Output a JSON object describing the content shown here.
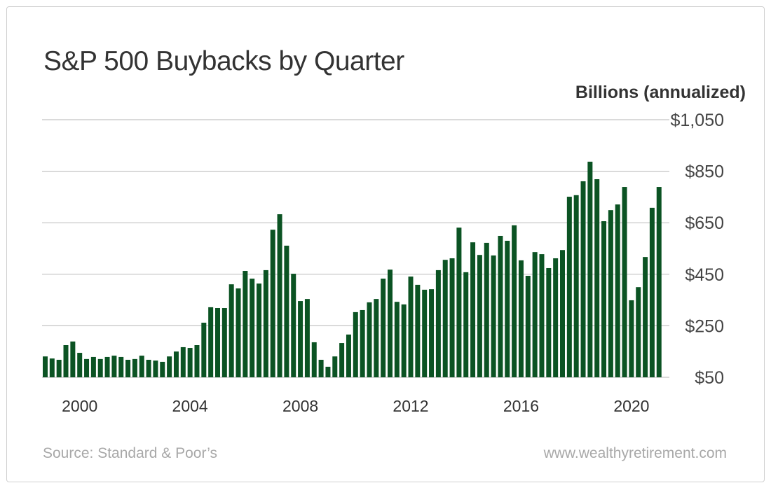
{
  "chart_data": {
    "type": "bar",
    "title": "S&P 500 Buybacks by Quarter",
    "ylabel": "Billions (annualized)",
    "ylim": [
      50,
      1050
    ],
    "yticks": [
      50,
      250,
      450,
      650,
      850,
      1050
    ],
    "ytick_labels": [
      "$50",
      "$250",
      "$450",
      "$650",
      "$850",
      "$1,050"
    ],
    "xtick_labels": [
      "2000",
      "2004",
      "2008",
      "2012",
      "2016",
      "2020"
    ],
    "grid": true,
    "color": "#0b5323",
    "categories": [
      "1999 Q1",
      "1999 Q2",
      "1999 Q3",
      "1999 Q4",
      "2000 Q1",
      "2000 Q2",
      "2000 Q3",
      "2000 Q4",
      "2001 Q1",
      "2001 Q2",
      "2001 Q3",
      "2001 Q4",
      "2002 Q1",
      "2002 Q2",
      "2002 Q3",
      "2002 Q4",
      "2003 Q1",
      "2003 Q2",
      "2003 Q3",
      "2003 Q4",
      "2004 Q1",
      "2004 Q2",
      "2004 Q3",
      "2004 Q4",
      "2005 Q1",
      "2005 Q2",
      "2005 Q3",
      "2005 Q4",
      "2006 Q1",
      "2006 Q2",
      "2006 Q3",
      "2006 Q4",
      "2007 Q1",
      "2007 Q2",
      "2007 Q3",
      "2007 Q4",
      "2008 Q1",
      "2008 Q2",
      "2008 Q3",
      "2008 Q4",
      "2009 Q1",
      "2009 Q2",
      "2009 Q3",
      "2009 Q4",
      "2010 Q1",
      "2010 Q2",
      "2010 Q3",
      "2010 Q4",
      "2011 Q1",
      "2011 Q2",
      "2011 Q3",
      "2011 Q4",
      "2012 Q1",
      "2012 Q2",
      "2012 Q3",
      "2012 Q4",
      "2013 Q1",
      "2013 Q2",
      "2013 Q3",
      "2013 Q4",
      "2014 Q1",
      "2014 Q2",
      "2014 Q3",
      "2014 Q4",
      "2015 Q1",
      "2015 Q2",
      "2015 Q3",
      "2015 Q4",
      "2016 Q1",
      "2016 Q2",
      "2016 Q3",
      "2016 Q4",
      "2017 Q1",
      "2017 Q2",
      "2017 Q3",
      "2017 Q4",
      "2018 Q1",
      "2018 Q2",
      "2018 Q3",
      "2018 Q4",
      "2019 Q1",
      "2019 Q2",
      "2019 Q3",
      "2019 Q4",
      "2020 Q1",
      "2020 Q2",
      "2020 Q3",
      "2020 Q4",
      "2021 Q1",
      "2021 Q2"
    ],
    "values": [
      131,
      123,
      118,
      175,
      189,
      145,
      121,
      129,
      121,
      129,
      134,
      129,
      118,
      121,
      134,
      118,
      115,
      110,
      131,
      150,
      167,
      164,
      175,
      262,
      322,
      319,
      319,
      411,
      395,
      463,
      433,
      414,
      466,
      623,
      683,
      561,
      452,
      346,
      354,
      186,
      118,
      91,
      131,
      183,
      216,
      303,
      311,
      341,
      354,
      433,
      468,
      343,
      333,
      441,
      409,
      390,
      392,
      466,
      506,
      512,
      631,
      458,
      574,
      525,
      572,
      523,
      599,
      580,
      640,
      504,
      444,
      536,
      528,
      474,
      512,
      544,
      751,
      757,
      811,
      887,
      819,
      656,
      699,
      721,
      789,
      349,
      400,
      517,
      708,
      789
    ]
  },
  "footer": {
    "source": "Source: Standard & Poor’s",
    "site": "www.wealthyretirement.com"
  }
}
